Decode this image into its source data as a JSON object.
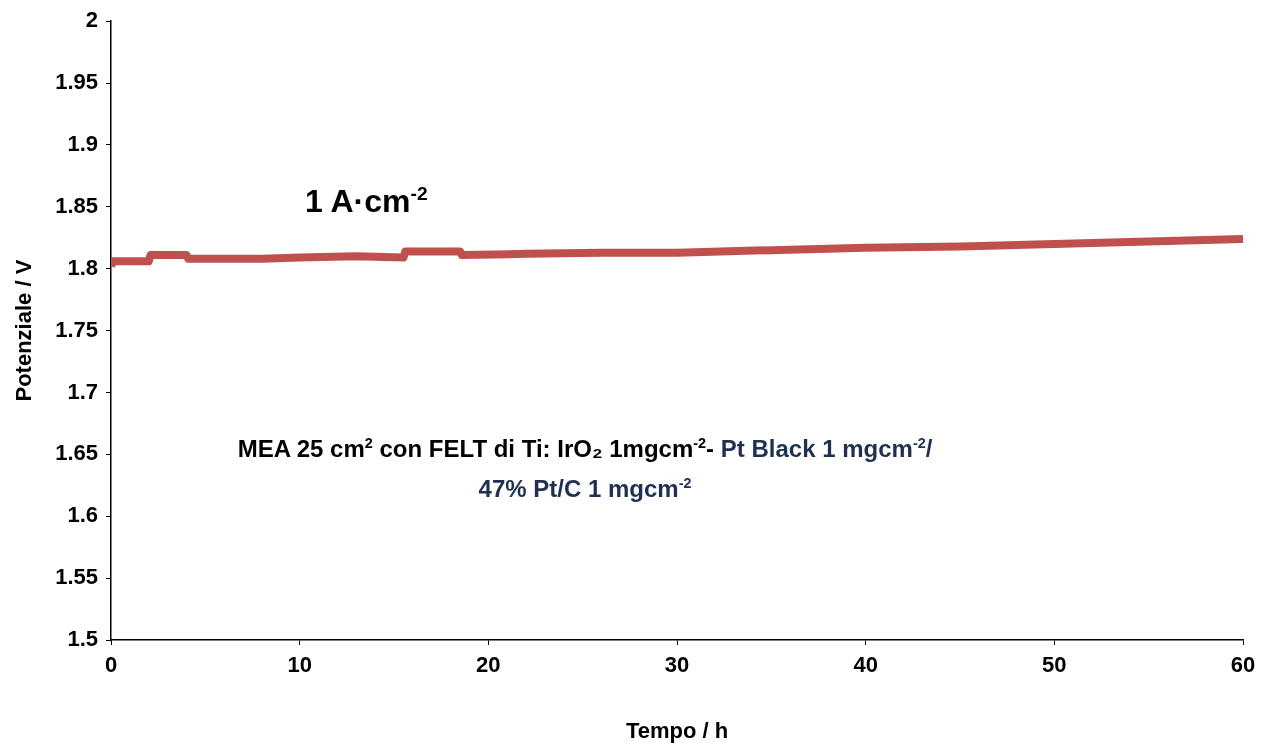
{
  "chart_data": {
    "type": "line",
    "xlabel": "Tempo / h",
    "ylabel": "Potenziale / V",
    "annotations": [
      "1 A·cm$^{-2}$",
      "MEA 25 cm$^{2}$  con FELT di Ti: IrO₂ 1mgcm$^{-2}$-",
      "Pt Black 1 mgcm$^{-2}$/ 47% Pt/C 1 mgcm$^{-2}$"
    ],
    "x": [
      0,
      0.1,
      2.0,
      2.1,
      4.0,
      4.1,
      8,
      10,
      13,
      15.5,
      15.6,
      18.5,
      18.6,
      22,
      26,
      30,
      35,
      40,
      45,
      50,
      55,
      60
    ],
    "series": [
      {
        "color": "#c0504d",
        "values": [
          1.802,
          1.806,
          1.806,
          1.811,
          1.811,
          1.808,
          1.808,
          1.809,
          1.81,
          1.809,
          1.814,
          1.814,
          1.811,
          1.812,
          1.813,
          1.813,
          1.815,
          1.817,
          1.818,
          1.82,
          1.822,
          1.824
        ]
      }
    ],
    "xlim": [
      0,
      60
    ],
    "xticks": [
      0,
      10,
      20,
      30,
      40,
      50,
      60
    ],
    "ylim": [
      1.5,
      2
    ],
    "yticks": [
      1.5,
      1.55,
      1.6,
      1.65,
      1.7,
      1.75,
      1.8,
      1.85,
      1.9,
      1.95,
      2
    ],
    "grid": false,
    "legend": false,
    "marker": "none",
    "line_style": "solid"
  }
}
